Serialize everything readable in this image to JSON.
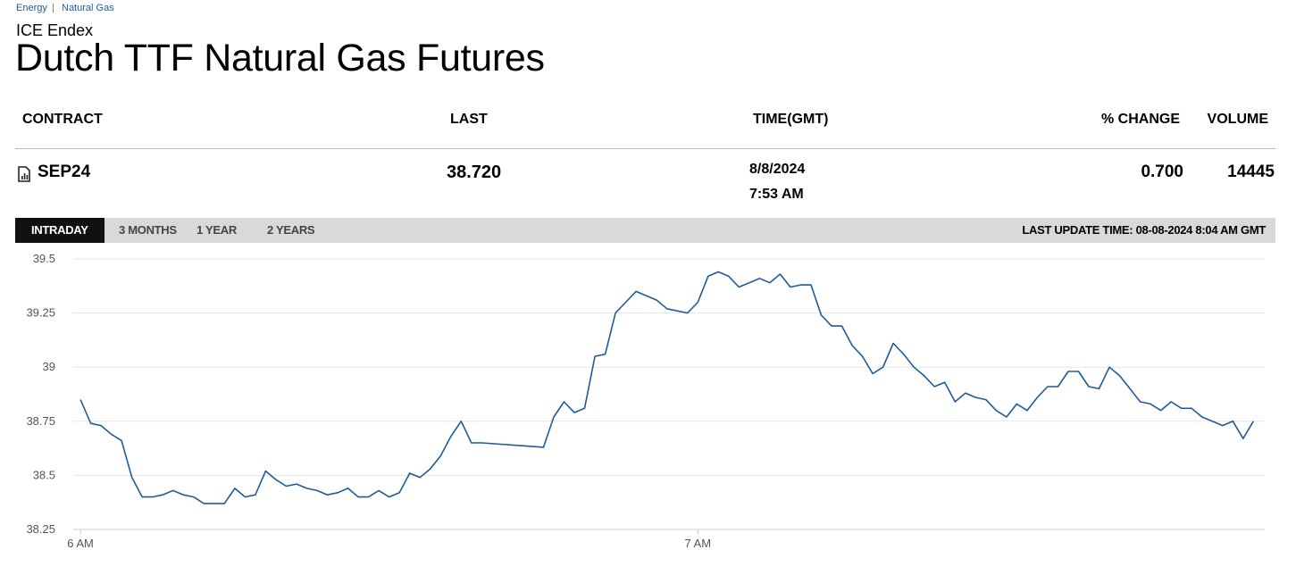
{
  "breadcrumb": [
    "Energy",
    "Natural Gas"
  ],
  "header": {
    "exchange": "ICE Endex",
    "title": "Dutch TTF Natural Gas Futures"
  },
  "table": {
    "columns": [
      "CONTRACT",
      "LAST",
      "TIME(GMT)",
      "% CHANGE",
      "VOLUME"
    ],
    "rows": [
      {
        "contract": "SEP24",
        "last": "38.720",
        "date": "8/8/2024",
        "time": "7:53 AM",
        "change": "0.700",
        "volume": "14445"
      }
    ]
  },
  "tabs": {
    "items": [
      "INTRADAY",
      "3 MONTHS",
      "1 YEAR",
      "2 YEARS"
    ],
    "active": 0,
    "last_update": "LAST UPDATE TIME: 08-08-2024 8:04 AM GMT"
  },
  "chart_data": {
    "type": "line",
    "color": "#1f5b98",
    "grid": true,
    "x": [
      360,
      361,
      362,
      363,
      364,
      365,
      366,
      367,
      368,
      369,
      370,
      371,
      372,
      373,
      374,
      375,
      376,
      377,
      378,
      379,
      380,
      381,
      382,
      383,
      384,
      385,
      386,
      387,
      388,
      389,
      390,
      391,
      392,
      393,
      394,
      395,
      396,
      397,
      398,
      399,
      405,
      406,
      407,
      408,
      409,
      410,
      411,
      412,
      413,
      414,
      415,
      416,
      417,
      418,
      419,
      420,
      421,
      422,
      423,
      424,
      425,
      426,
      427,
      428,
      429,
      430,
      431,
      432,
      433,
      434,
      435,
      436,
      437,
      438,
      439,
      440,
      441,
      442,
      443,
      444,
      445,
      446,
      447,
      448,
      449,
      450,
      451,
      452,
      453,
      454,
      455,
      456,
      457,
      458,
      459,
      460,
      461,
      462,
      463,
      464,
      465,
      466,
      467,
      468,
      469,
      470,
      471,
      472,
      473,
      474
    ],
    "values": [
      38.85,
      38.74,
      38.73,
      38.69,
      38.66,
      38.49,
      38.4,
      38.4,
      38.41,
      38.43,
      38.41,
      38.4,
      38.37,
      38.37,
      38.37,
      38.44,
      38.4,
      38.41,
      38.52,
      38.48,
      38.45,
      38.46,
      38.44,
      38.43,
      38.41,
      38.42,
      38.44,
      38.4,
      38.4,
      38.43,
      38.4,
      38.42,
      38.51,
      38.49,
      38.53,
      38.59,
      38.68,
      38.75,
      38.65,
      38.65,
      38.63,
      38.77,
      38.84,
      38.79,
      38.81,
      39.05,
      39.06,
      39.25,
      39.3,
      39.35,
      39.33,
      39.31,
      39.27,
      39.26,
      39.25,
      39.3,
      39.42,
      39.44,
      39.42,
      39.37,
      39.39,
      39.41,
      39.39,
      39.43,
      39.37,
      39.38,
      39.38,
      39.24,
      39.19,
      39.19,
      39.1,
      39.05,
      38.97,
      39.0,
      39.11,
      39.06,
      39.0,
      38.96,
      38.91,
      38.93,
      38.84,
      38.88,
      38.86,
      38.85,
      38.8,
      38.77,
      38.83,
      38.8,
      38.86,
      38.91,
      38.91,
      38.98,
      38.98,
      38.91,
      38.9,
      39.0,
      38.96,
      38.9,
      38.84,
      38.83,
      38.8,
      38.84,
      38.81,
      38.81,
      38.77,
      38.75,
      38.73,
      38.75,
      38.67,
      38.75
    ],
    "xlim": [
      359.3,
      475.1
    ],
    "xticks": [
      {
        "value": 360,
        "label": "6 AM"
      },
      {
        "value": 420,
        "label": "7 AM"
      }
    ],
    "ylim": [
      38.25,
      39.5
    ],
    "yticks": [
      39.5,
      39.25,
      39,
      38.75,
      38.5,
      38.25
    ]
  }
}
